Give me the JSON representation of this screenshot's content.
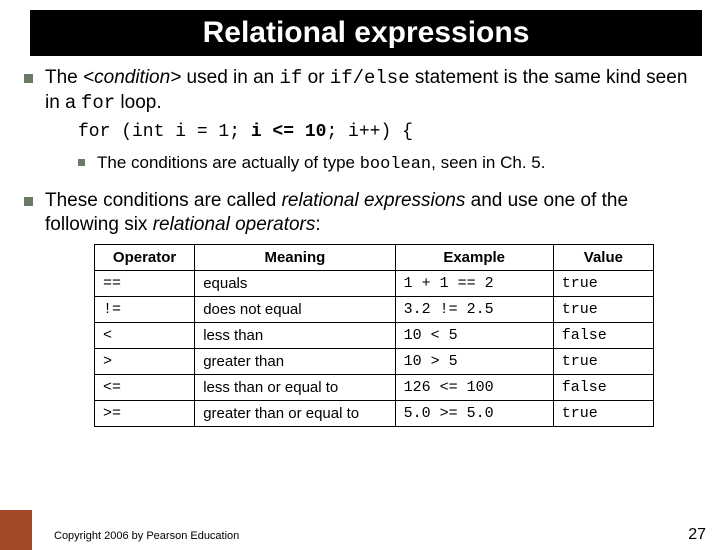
{
  "title": "Relational expressions",
  "bullet1": {
    "pre": "The ",
    "cond": "<condition>",
    "mid1": " used in an ",
    "code1": "if",
    "mid2": " or ",
    "code2": "if/else",
    "mid3": " statement is the same kind seen in a ",
    "code3": "for",
    "end": " loop."
  },
  "code": {
    "p1": "for (int i = 1; ",
    "bold": "i <= 10",
    "p2": "; i++) {"
  },
  "subbullet": {
    "pre": "The conditions are actually of type ",
    "code": "boolean",
    "post": ", seen in Ch. 5."
  },
  "bullet2": {
    "pre": "These conditions are called ",
    "it1": "relational expressions",
    "mid": " and use one of the following six ",
    "it2": "relational operators",
    "end": ":"
  },
  "table": {
    "headers": {
      "op": "Operator",
      "mean": "Meaning",
      "ex": "Example",
      "val": "Value"
    },
    "rows": [
      {
        "op": "==",
        "mean": "equals",
        "ex": "1 + 1 == 2",
        "val": "true"
      },
      {
        "op": "!=",
        "mean": "does not equal",
        "ex": "3.2 != 2.5",
        "val": "true"
      },
      {
        "op": "<",
        "mean": "less than",
        "ex": "10 < 5",
        "val": "false"
      },
      {
        "op": ">",
        "mean": "greater than",
        "ex": "10 > 5",
        "val": "true"
      },
      {
        "op": "<=",
        "mean": "less than or equal to",
        "ex": "126 <= 100",
        "val": "false"
      },
      {
        "op": ">=",
        "mean": "greater than or equal to",
        "ex": "5.0 >= 5.0",
        "val": "true"
      }
    ]
  },
  "footer": "Copyright 2006 by Pearson Education",
  "pagenum": "27",
  "colors": {
    "title_bg": "#000000",
    "title_fg": "#ffffff",
    "bullet": "#6b7a66",
    "deco": "#a24a2a",
    "border": "#000000",
    "bg": "#ffffff"
  }
}
